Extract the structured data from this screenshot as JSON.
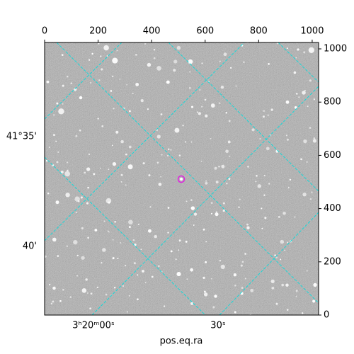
{
  "chart_data": {
    "type": "image",
    "xlabel": "pos.eq.ra",
    "xlim": [
      0,
      1024
    ],
    "xticks": [
      0,
      200,
      400,
      600,
      800,
      1000
    ],
    "ylim": [
      0,
      1024
    ],
    "yticks": [
      0,
      200,
      400,
      600,
      800,
      1000
    ],
    "ra_tick_labels": [
      "3ʰ20ᵐ00ˢ",
      "30ˢ"
    ],
    "dec_tick_labels": [
      "41°35'",
      "40'"
    ],
    "grid_color": "#17d8d8"
  }
}
